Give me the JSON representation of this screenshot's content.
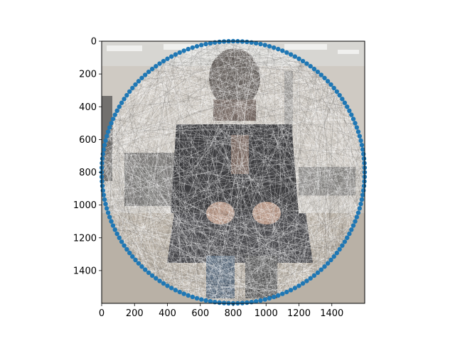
{
  "chart_data": {
    "type": "scatter",
    "title": "",
    "xlabel": "",
    "ylabel": "",
    "xlim": [
      0,
      1600
    ],
    "ylim": [
      1600,
      0
    ],
    "y_inverted": true,
    "grid": false,
    "background_image": "photo-of-seated-person-in-room-overlaid-with-string-art-lines",
    "x_ticks": [
      0,
      200,
      400,
      600,
      800,
      1000,
      1200,
      1400
    ],
    "y_ticks": [
      0,
      200,
      400,
      600,
      800,
      1000,
      1200,
      1400
    ],
    "x_tick_labels": [
      "0",
      "200",
      "400",
      "600",
      "800",
      "1000",
      "1200",
      "1400"
    ],
    "y_tick_labels": [
      "0",
      "200",
      "400",
      "600",
      "800",
      "1000",
      "1200",
      "1400"
    ],
    "series": [
      {
        "marker": "circle",
        "color": "#1f77b4",
        "layout": "circle",
        "center": [
          800,
          800
        ],
        "radius": 800,
        "count": 180
      }
    ]
  },
  "colors": {
    "marker": "#1f77b4",
    "axis": "#000000",
    "lines": "#ffffff"
  }
}
